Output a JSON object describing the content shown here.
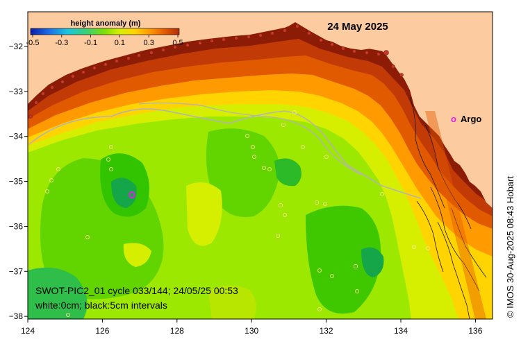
{
  "map": {
    "date_title": "24 May 2025",
    "colorbar": {
      "title": "height anomaly (m)",
      "tick_labels": [
        "-0.5",
        "-0.3",
        "-0.1",
        "0.1",
        "0.3",
        "0.5"
      ],
      "colors": [
        "#0a1aa8",
        "#1a6ae6",
        "#17c6e0",
        "#3ad070",
        "#7fe000",
        "#d6ef00",
        "#ffd400",
        "#ff9a00",
        "#e85a00",
        "#b22a0a"
      ]
    },
    "longitude_ticks": [
      "124",
      "126",
      "128",
      "130",
      "132",
      "134",
      "136"
    ],
    "latitude_ticks": [
      "−32",
      "−33",
      "−34",
      "−35",
      "−36",
      "−37",
      "−38"
    ],
    "legend": {
      "symbol": "o",
      "label": "Argo",
      "color": "#e020e0"
    },
    "info_line1": "SWOT-PIC2_01 cycle 033/144; 24/05/25 00:53",
    "info_line2": "white:0cm; black:5cm intervals",
    "credit": "© IMOS 30-Aug-2025 08:43 Hobart",
    "colors": {
      "land": "#fccca0",
      "ocean_base": "#9de800"
    }
  }
}
